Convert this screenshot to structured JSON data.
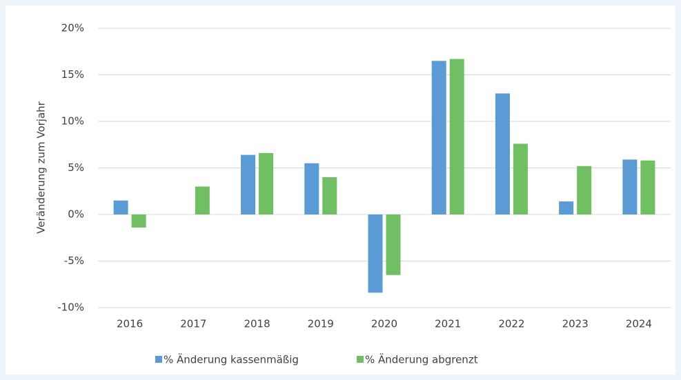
{
  "chart_data": {
    "type": "bar",
    "y_label": "Veränderung zum Vorjahr",
    "categories": [
      "2016",
      "2017",
      "2018",
      "2019",
      "2020",
      "2021",
      "2022",
      "2023",
      "2024"
    ],
    "series": [
      {
        "name": "% Änderung kassenmäßig",
        "color": "#5b9bd5",
        "values": [
          1.5,
          0,
          6.4,
          5.5,
          -8.4,
          16.5,
          13.0,
          1.4,
          5.9
        ]
      },
      {
        "name": "% Änderung abgrenzt",
        "color": "#70bf62",
        "values": [
          -1.4,
          3.0,
          6.6,
          4.0,
          -6.5,
          16.7,
          7.6,
          5.2,
          5.8
        ]
      }
    ],
    "ylim": [
      -10,
      20
    ],
    "yticks": [
      {
        "value": -10,
        "label": "-10%"
      },
      {
        "value": -5,
        "label": "-5%"
      },
      {
        "value": 0,
        "label": "0%"
      },
      {
        "value": 5,
        "label": "5%"
      },
      {
        "value": 10,
        "label": "10%"
      },
      {
        "value": 15,
        "label": "15%"
      },
      {
        "value": 20,
        "label": "20%"
      }
    ],
    "grid": true,
    "legend": "bottom"
  }
}
